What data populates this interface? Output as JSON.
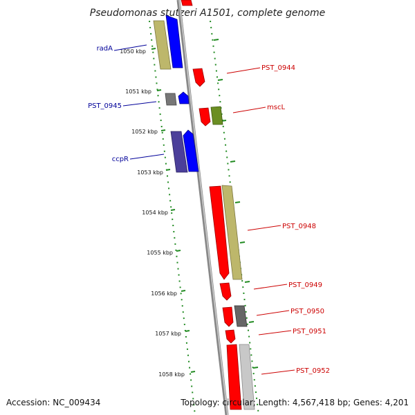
{
  "title": "Pseudomonas stutzeri A1501, complete genome",
  "footer": {
    "accession": "Accession: NC_009434",
    "summary": "Topology: circular; Length: 4,567,418 bp; Genes: 4,201"
  },
  "colors": {
    "backbone": "#888888",
    "ticks": "#228B22",
    "forward_label": "#cc0000",
    "reverse_label": "#000099"
  },
  "kbp_labels": [
    "1050 kbp",
    "1051 kbp",
    "1052 kbp",
    "1053 kbp",
    "1054 kbp",
    "1055 kbp",
    "1056 kbp",
    "1057 kbp",
    "1058 kbp"
  ],
  "gene_labels": {
    "radA": "radA",
    "pst0945": "PST_0945",
    "ccpR": "ccpR",
    "pst0944": "PST_0944",
    "mscL": "mscL",
    "pst0948": "PST_0948",
    "pst0949": "PST_0949",
    "pst0950": "PST_0950",
    "pst0951": "PST_0951",
    "pst0952": "PST_0952"
  }
}
